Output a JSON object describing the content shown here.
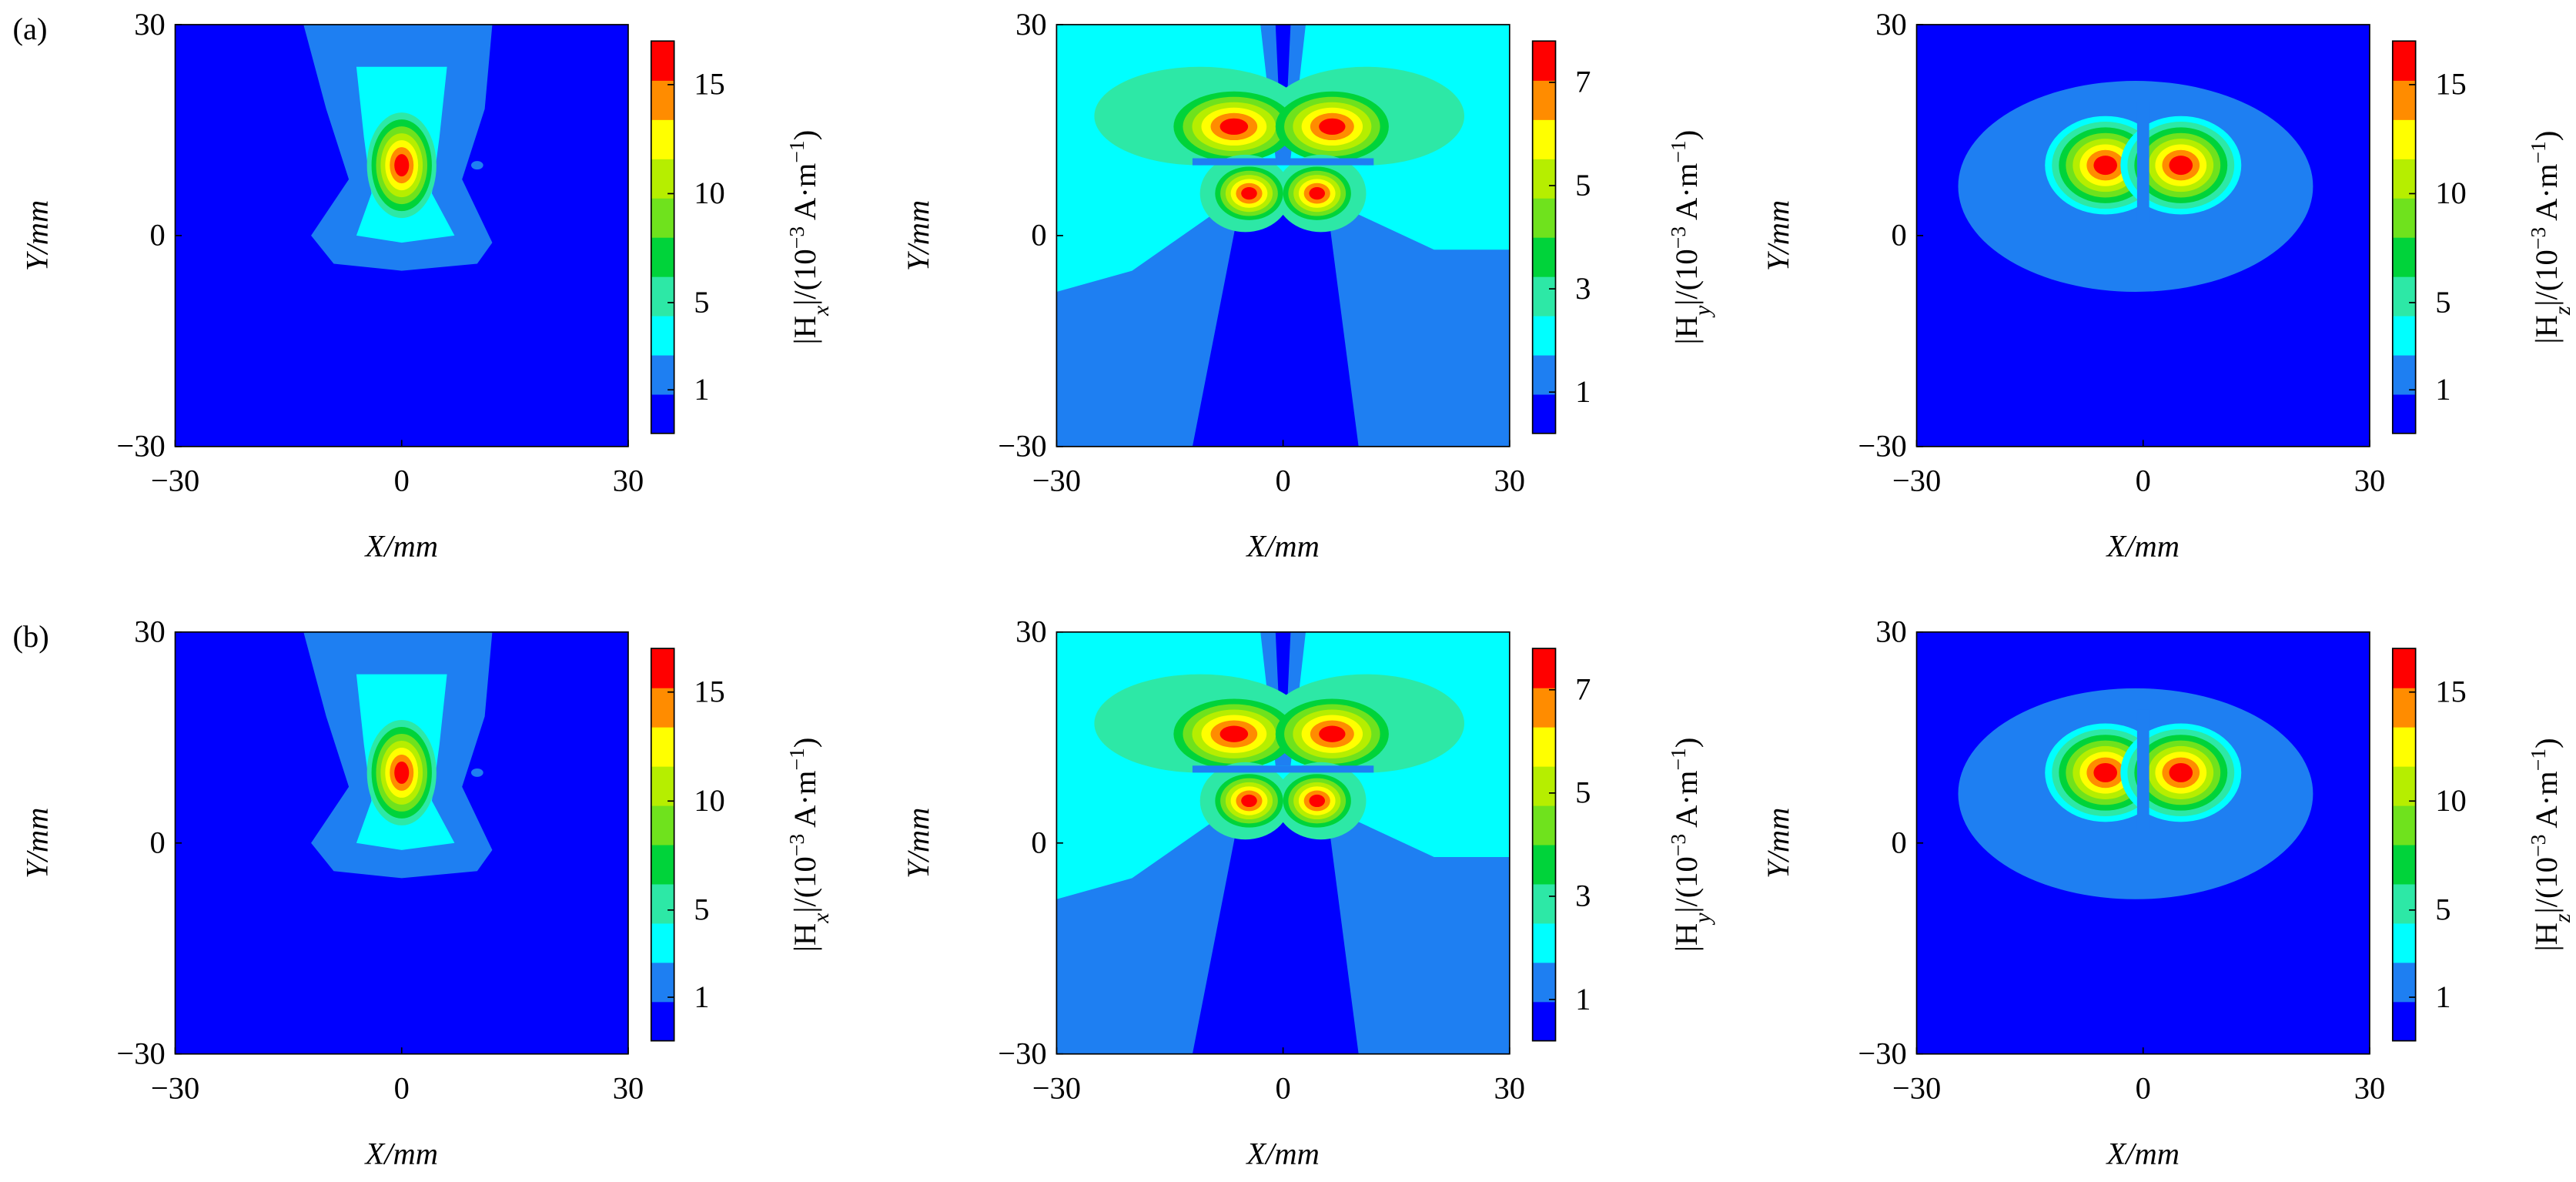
{
  "chart_data": [
    {
      "type": "contour",
      "panel_label": "(a)",
      "xlabel": "X/mm",
      "ylabel": "Y/mm",
      "xlim": [
        -30,
        30
      ],
      "ylim": [
        -30,
        30
      ],
      "xticks": [
        {
          "value": -30,
          "label": "−30"
        },
        0,
        30
      ],
      "yticks": [
        {
          "value": -30,
          "label": "−30"
        },
        0,
        30
      ],
      "colorbar": {
        "label": [
          "|H",
          "x",
          "|/(10",
          "−3",
          " A·m",
          "−1",
          ")"
        ],
        "levels": [
          -1,
          0.8,
          2.6,
          4.4,
          6.2,
          8,
          9.8,
          11.6,
          13.4,
          15.2,
          17
        ],
        "ticks": [
          1,
          5,
          10,
          15
        ],
        "colors": [
          "#0000ff",
          "#1e7ff2",
          "#00ffff",
          "#2de8a6",
          "#00d33a",
          "#6fe21d",
          "#b6ee00",
          "#ffff00",
          "#ff8c00",
          "#ff0000"
        ]
      }
    },
    {
      "type": "contour",
      "xlabel": "X/mm",
      "ylabel": "Y/mm",
      "xlim": [
        -30,
        30
      ],
      "ylim": [
        -30,
        30
      ],
      "xticks": [
        {
          "value": -30,
          "label": "−30"
        },
        0,
        30
      ],
      "yticks": [
        {
          "value": -30,
          "label": "−30"
        },
        0,
        30
      ],
      "colorbar": {
        "label": [
          "|H",
          "y",
          "|/(10",
          "−3",
          " A·m",
          "−1",
          ")"
        ],
        "levels": [
          0.2,
          0.96,
          1.72,
          2.48,
          3.24,
          4,
          4.76,
          5.52,
          6.28,
          7.04,
          7.8
        ],
        "ticks": [
          1,
          3,
          5,
          7
        ],
        "colors": [
          "#0000ff",
          "#1e7ff2",
          "#00ffff",
          "#2de8a6",
          "#00d33a",
          "#6fe21d",
          "#b6ee00",
          "#ffff00",
          "#ff8c00",
          "#ff0000"
        ]
      }
    },
    {
      "type": "contour",
      "xlabel": "X/mm",
      "ylabel": "Y/mm",
      "xlim": [
        -30,
        30
      ],
      "ylim": [
        -30,
        30
      ],
      "xticks": [
        {
          "value": -30,
          "label": "−30"
        },
        0,
        30
      ],
      "yticks": [
        {
          "value": -30,
          "label": "−30"
        },
        0,
        30
      ],
      "colorbar": {
        "label": [
          "|H",
          "z",
          "|/(10",
          "−3",
          " A·m",
          "−1",
          ")"
        ],
        "levels": [
          -1,
          0.8,
          2.6,
          4.4,
          6.2,
          8,
          9.8,
          11.6,
          13.4,
          15.2,
          17
        ],
        "ticks": [
          1,
          5,
          10,
          15
        ],
        "colors": [
          "#0000ff",
          "#1e7ff2",
          "#00ffff",
          "#2de8a6",
          "#00d33a",
          "#6fe21d",
          "#b6ee00",
          "#ffff00",
          "#ff8c00",
          "#ff0000"
        ]
      }
    },
    {
      "type": "contour",
      "panel_label": "(b)",
      "xlabel": "X/mm",
      "ylabel": "Y/mm",
      "xlim": [
        -30,
        30
      ],
      "ylim": [
        -30,
        30
      ],
      "xticks": [
        {
          "value": -30,
          "label": "−30"
        },
        0,
        30
      ],
      "yticks": [
        {
          "value": -30,
          "label": "−30"
        },
        0,
        30
      ],
      "colorbar": {
        "label": [
          "|H",
          "x",
          "|/(10",
          "−3",
          " A·m",
          "−1",
          ")"
        ],
        "levels": [
          -1,
          0.8,
          2.6,
          4.4,
          6.2,
          8,
          9.8,
          11.6,
          13.4,
          15.2,
          17
        ],
        "ticks": [
          1,
          5,
          10,
          15
        ],
        "colors": [
          "#0000ff",
          "#1e7ff2",
          "#00ffff",
          "#2de8a6",
          "#00d33a",
          "#6fe21d",
          "#b6ee00",
          "#ffff00",
          "#ff8c00",
          "#ff0000"
        ]
      }
    },
    {
      "type": "contour",
      "xlabel": "X/mm",
      "ylabel": "Y/mm",
      "xlim": [
        -30,
        30
      ],
      "ylim": [
        -30,
        30
      ],
      "xticks": [
        {
          "value": -30,
          "label": "−30"
        },
        0,
        30
      ],
      "yticks": [
        {
          "value": -30,
          "label": "−30"
        },
        0,
        30
      ],
      "colorbar": {
        "label": [
          "|H",
          "y",
          "|/(10",
          "−3",
          " A·m",
          "−1",
          ")"
        ],
        "levels": [
          0.2,
          0.96,
          1.72,
          2.48,
          3.24,
          4,
          4.76,
          5.52,
          6.28,
          7.04,
          7.8
        ],
        "ticks": [
          1,
          3,
          5,
          7
        ],
        "colors": [
          "#0000ff",
          "#1e7ff2",
          "#00ffff",
          "#2de8a6",
          "#00d33a",
          "#6fe21d",
          "#b6ee00",
          "#ffff00",
          "#ff8c00",
          "#ff0000"
        ]
      }
    },
    {
      "type": "contour",
      "xlabel": "X/mm",
      "ylabel": "Y/mm",
      "xlim": [
        -30,
        30
      ],
      "ylim": [
        -30,
        30
      ],
      "xticks": [
        {
          "value": -30,
          "label": "−30"
        },
        0,
        30
      ],
      "yticks": [
        {
          "value": -30,
          "label": "−30"
        },
        0,
        30
      ],
      "colorbar": {
        "label": [
          "|H",
          "z",
          "|/(10",
          "−3",
          " A·m",
          "−1",
          ")"
        ],
        "levels": [
          -1,
          0.8,
          2.6,
          4.4,
          6.2,
          8,
          9.8,
          11.6,
          13.4,
          15.2,
          17
        ],
        "ticks": [
          1,
          5,
          10,
          15
        ],
        "colors": [
          "#0000ff",
          "#1e7ff2",
          "#00ffff",
          "#2de8a6",
          "#00d33a",
          "#6fe21d",
          "#b6ee00",
          "#ffff00",
          "#ff8c00",
          "#ff0000"
        ]
      }
    }
  ]
}
